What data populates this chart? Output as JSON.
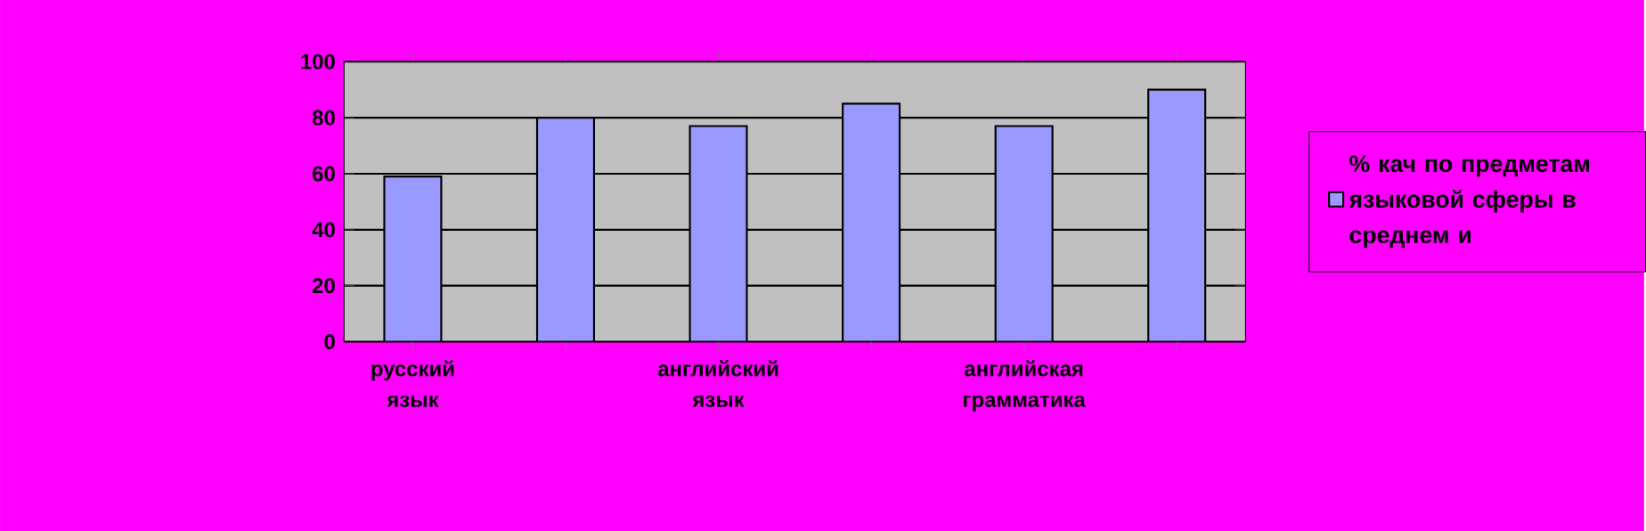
{
  "chart_data": {
    "type": "bar",
    "categories": [
      "русский язык",
      null,
      "английский язык",
      null,
      "английская грамматика",
      null
    ],
    "series": [
      {
        "name": "% кач по предметам языковой сферы в среднем и",
        "color": "#9999ff",
        "values": [
          59,
          80,
          77,
          85,
          77,
          90
        ]
      }
    ],
    "ylim": [
      0,
      100
    ],
    "yticks": [
      0,
      20,
      40,
      60,
      80,
      100
    ],
    "grid": "y",
    "legend": "right"
  }
}
